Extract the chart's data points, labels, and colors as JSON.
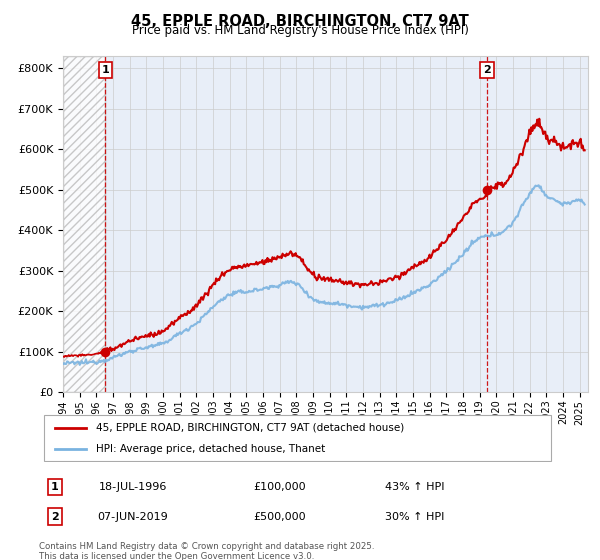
{
  "title": "45, EPPLE ROAD, BIRCHINGTON, CT7 9AT",
  "subtitle": "Price paid vs. HM Land Registry's House Price Index (HPI)",
  "ylim": [
    0,
    820000
  ],
  "yticks": [
    0,
    100000,
    200000,
    300000,
    400000,
    500000,
    600000,
    700000,
    800000
  ],
  "ytick_labels": [
    "£0",
    "£100K",
    "£200K",
    "£300K",
    "£400K",
    "£500K",
    "£600K",
    "£700K",
    "£800K"
  ],
  "xlim_start": 1994.0,
  "xlim_end": 2025.5,
  "xlabel_years": [
    1994,
    1995,
    1996,
    1997,
    1998,
    1999,
    2000,
    2001,
    2002,
    2003,
    2004,
    2005,
    2006,
    2007,
    2008,
    2009,
    2010,
    2011,
    2012,
    2013,
    2014,
    2015,
    2016,
    2017,
    2018,
    2019,
    2020,
    2021,
    2022,
    2023,
    2024,
    2025
  ],
  "hpi_color": "#7ab3e0",
  "price_color": "#cc0000",
  "legend1_label": "45, EPPLE ROAD, BIRCHINGTON, CT7 9AT (detached house)",
  "legend2_label": "HPI: Average price, detached house, Thanet",
  "sale1_year": 1996.54,
  "sale1_price": 100000,
  "sale1_label": "1",
  "sale2_year": 2019.44,
  "sale2_price": 500000,
  "sale2_label": "2",
  "annotation1_date": "18-JUL-1996",
  "annotation1_price": "£100,000",
  "annotation1_hpi": "43% ↑ HPI",
  "annotation2_date": "07-JUN-2019",
  "annotation2_price": "£500,000",
  "annotation2_hpi": "30% ↑ HPI",
  "footer": "Contains HM Land Registry data © Crown copyright and database right 2025.\nThis data is licensed under the Open Government Licence v3.0.",
  "hatch_color": "#bbbbbb",
  "grid_color": "#cccccc",
  "background_color": "#e8eef8"
}
